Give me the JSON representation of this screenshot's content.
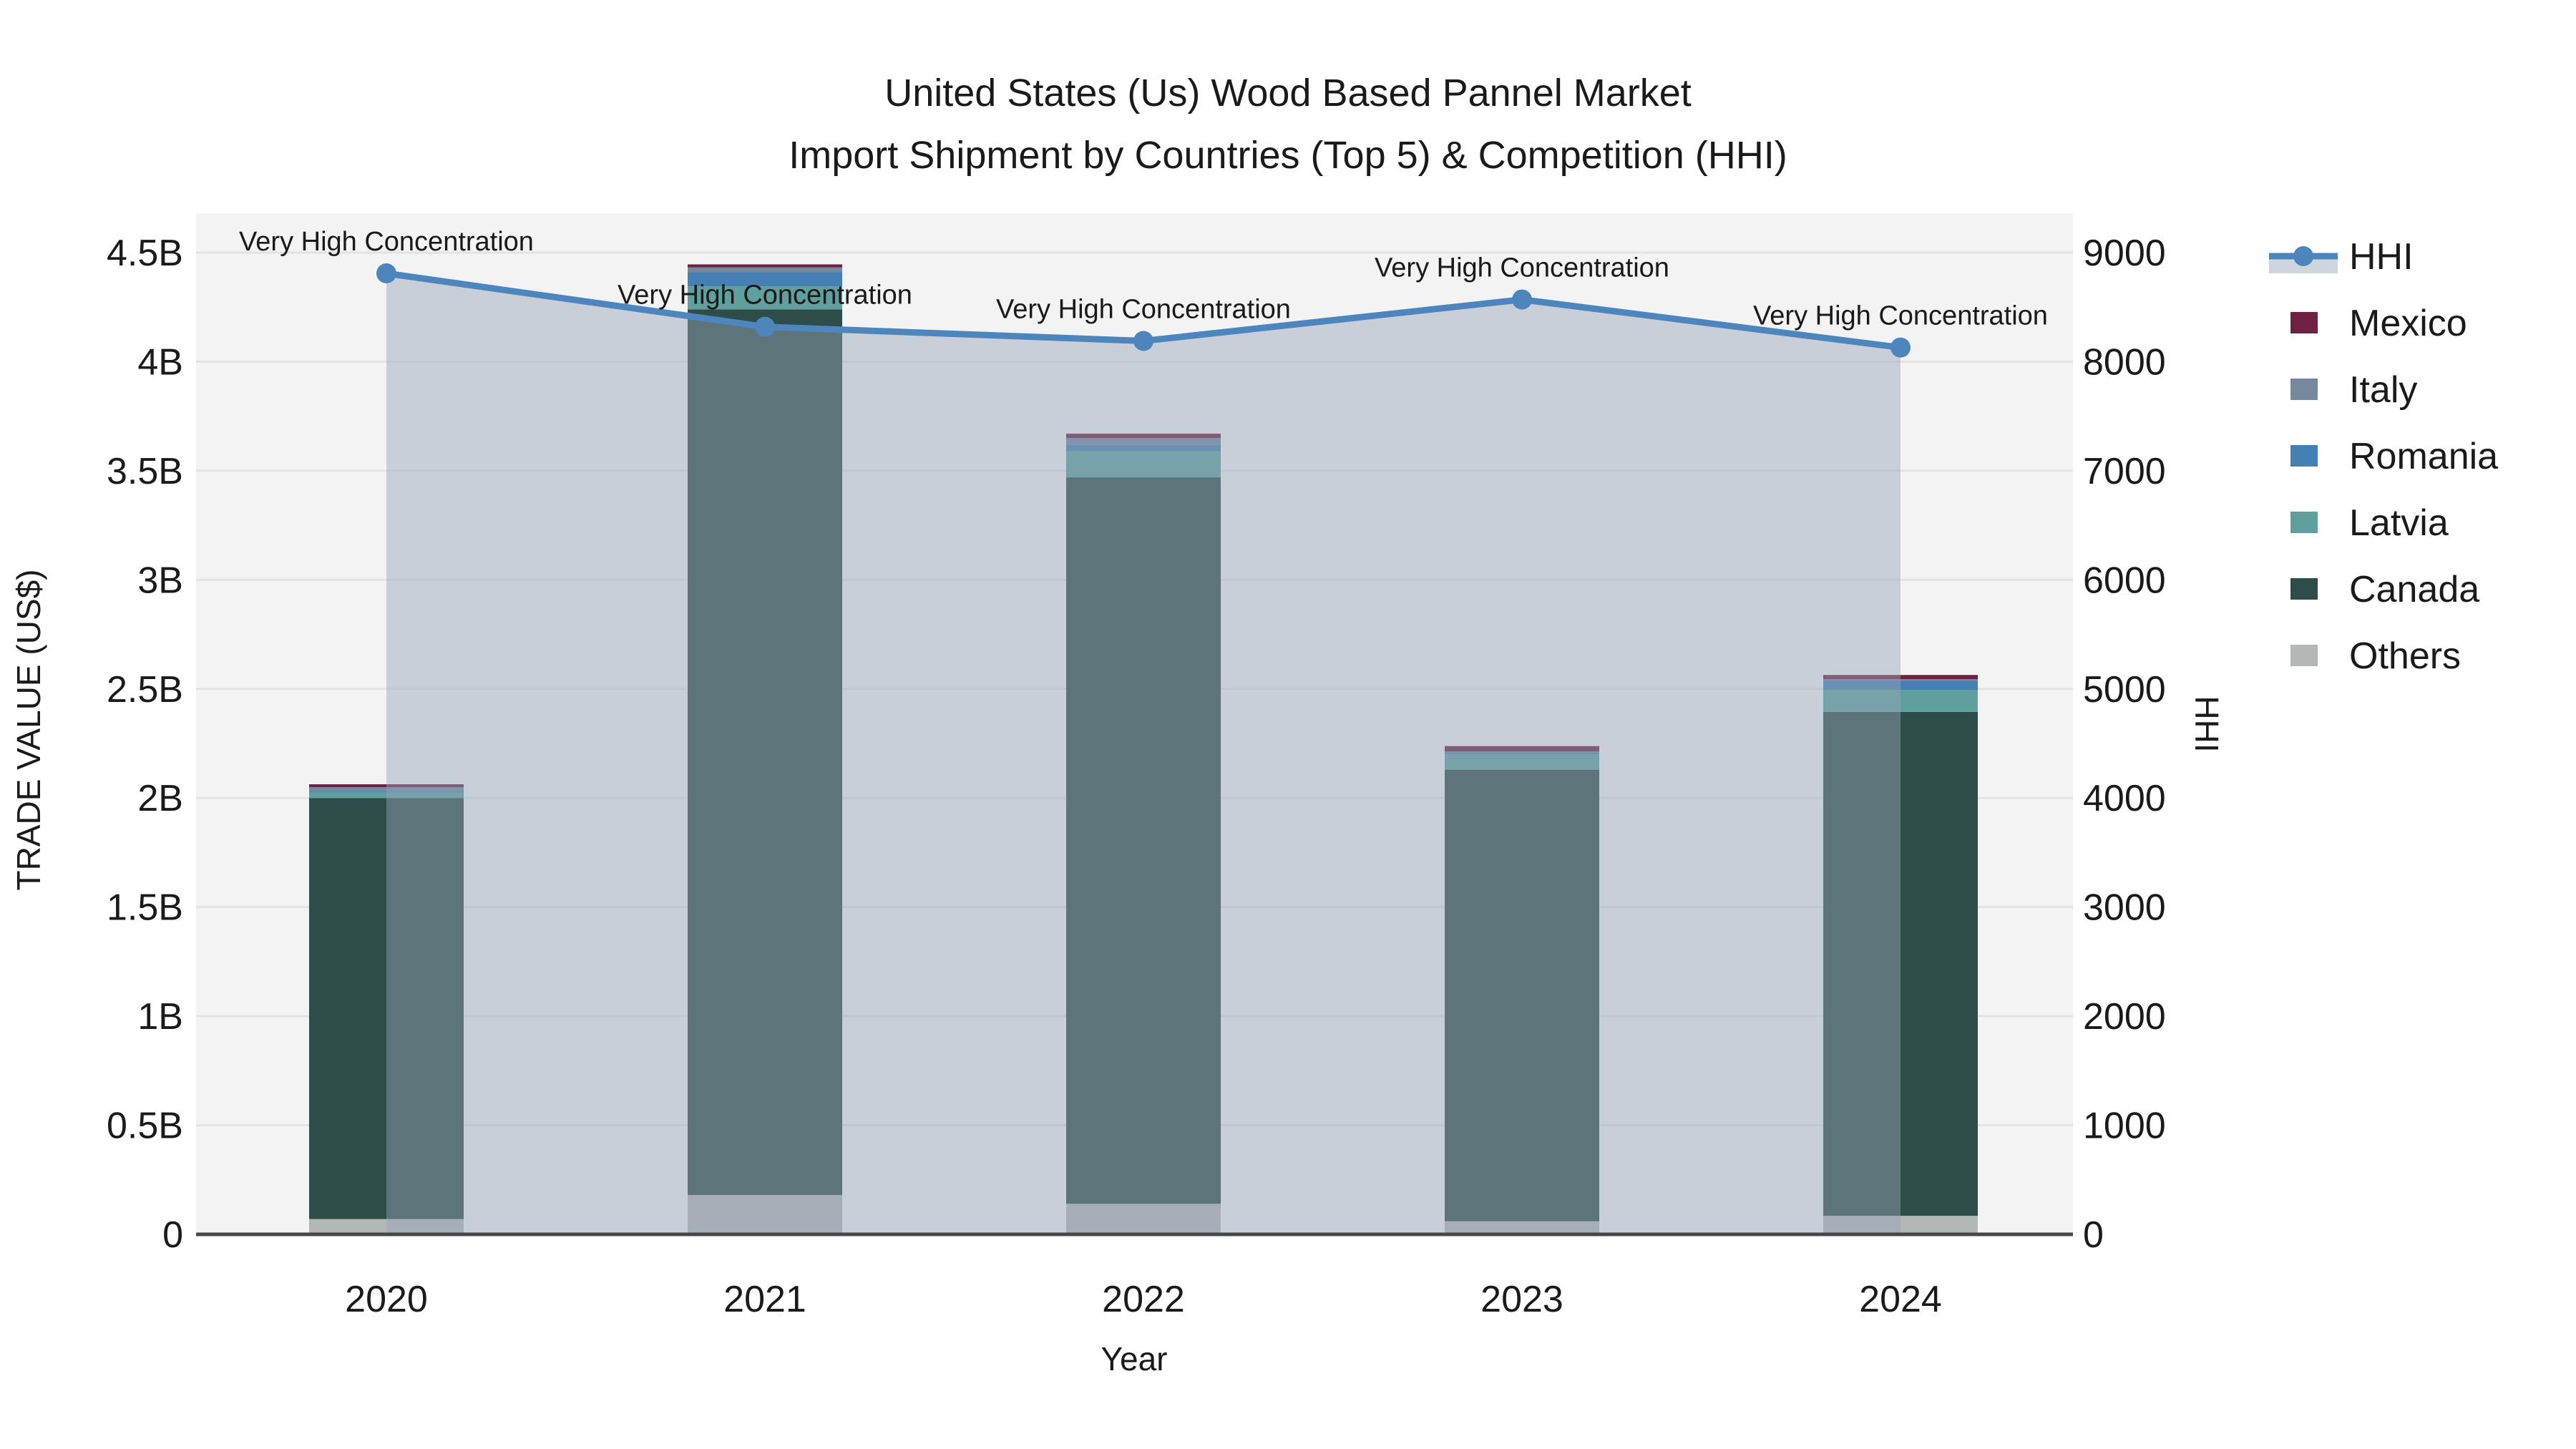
{
  "title": {
    "line1": "United States (Us) Wood Based Pannel Market",
    "line2": "Import Shipment by Countries (Top 5) & Competition (HHI)"
  },
  "axes": {
    "x_title": "Year",
    "y_left_title": "TRADE VALUE (US$)",
    "y_right_title": "HHI",
    "y_left_ticks": [
      "0",
      "0.5B",
      "1B",
      "1.5B",
      "2B",
      "2.5B",
      "3B",
      "3.5B",
      "4B",
      "4.5B"
    ],
    "y_right_ticks": [
      "0",
      "1000",
      "2000",
      "3000",
      "4000",
      "5000",
      "6000",
      "7000",
      "8000",
      "9000"
    ]
  },
  "chart_data": {
    "type": "bar+line",
    "title": "United States (Us) Wood Based Pannel Market Import Shipment by Countries (Top 5) & Competition (HHI)",
    "xlabel": "Year",
    "ylabel_left": "TRADE VALUE (US$)",
    "ylabel_right": "HHI",
    "ylim_left_billions": [
      0,
      4.68
    ],
    "ylim_right": [
      0,
      9360
    ],
    "grid": true,
    "categories": [
      "2020",
      "2021",
      "2022",
      "2023",
      "2024"
    ],
    "bar_stack_bottom_to_top": [
      {
        "name": "Others",
        "color": "#b3b8b6",
        "values_billions": [
          0.07,
          0.18,
          0.14,
          0.06,
          0.085
        ]
      },
      {
        "name": "Canada",
        "color": "#2e4d49",
        "values_billions": [
          1.93,
          4.06,
          3.33,
          2.07,
          2.31
        ]
      },
      {
        "name": "Latvia",
        "color": "#5fa09f",
        "values_billions": [
          0.025,
          0.105,
          0.12,
          0.07,
          0.1
        ]
      },
      {
        "name": "Romania",
        "color": "#4580b4",
        "values_billions": [
          0.005,
          0.065,
          0.03,
          0.007,
          0.042
        ]
      },
      {
        "name": "Italy",
        "color": "#76889b",
        "values_billions": [
          0.02,
          0.022,
          0.03,
          0.007,
          0.008
        ]
      },
      {
        "name": "Mexico",
        "color": "#6e2142",
        "values_billions": [
          0.013,
          0.014,
          0.02,
          0.024,
          0.019
        ]
      }
    ],
    "bar_totals_billions": [
      2.06,
      4.45,
      3.67,
      2.24,
      2.56
    ],
    "line_series": {
      "name": "HHI",
      "color": "#4d86bd",
      "fill_color": "rgba(150,163,185,0.45)",
      "values": [
        8810,
        8320,
        8190,
        8570,
        8130
      ]
    },
    "annotations": [
      {
        "x": "2020",
        "text": "Very High Concentration"
      },
      {
        "x": "2021",
        "text": "Very High Concentration"
      },
      {
        "x": "2022",
        "text": "Very High Concentration"
      },
      {
        "x": "2023",
        "text": "Very High Concentration"
      },
      {
        "x": "2024",
        "text": "Very High Concentration"
      }
    ],
    "plot_bg": "#f3f3f3",
    "grid_color": "#e3e3e3",
    "zeroline_color": "#474747",
    "legend_position": "right"
  },
  "legend": {
    "items": [
      {
        "label": "HHI",
        "type": "line",
        "color": "#4d86bd",
        "band_color": "#cfd5dc"
      },
      {
        "label": "Mexico",
        "type": "swatch",
        "color": "#6e2142"
      },
      {
        "label": "Italy",
        "type": "swatch",
        "color": "#76889b"
      },
      {
        "label": "Romania",
        "type": "swatch",
        "color": "#4580b4"
      },
      {
        "label": "Latvia",
        "type": "swatch",
        "color": "#5fa09f"
      },
      {
        "label": "Canada",
        "type": "swatch",
        "color": "#2e4d49"
      },
      {
        "label": "Others",
        "type": "swatch",
        "color": "#b3b8b6"
      }
    ]
  }
}
